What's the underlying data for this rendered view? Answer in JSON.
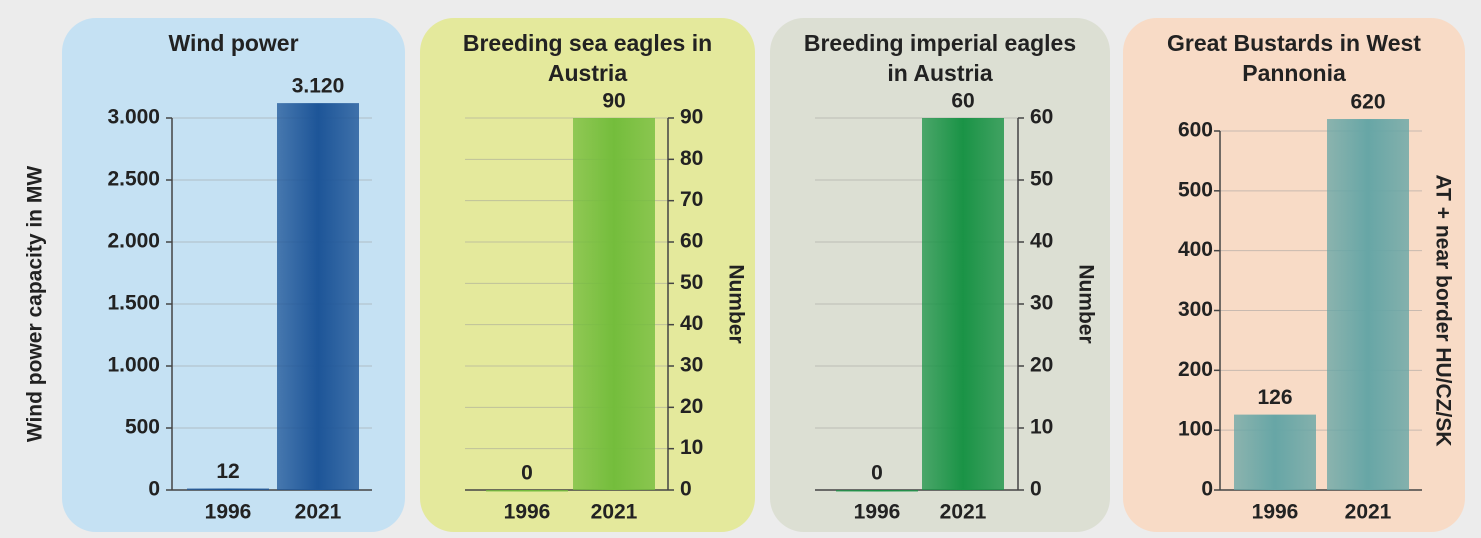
{
  "chart_data": [
    {
      "type": "bar",
      "title": "Wind power",
      "categories": [
        "1996",
        "2021"
      ],
      "values": [
        12,
        3120
      ],
      "value_labels": [
        "12",
        "3.120"
      ],
      "color": "#1d5598",
      "background": "#c5e1f3",
      "ylabel": "Wind power capacity in MW",
      "axis_side": "left",
      "ylim": [
        0,
        3000
      ],
      "yticks": [
        0,
        500,
        {
          "value": 1000,
          "label": "1.000"
        },
        {
          "value": 1500,
          "label": "1.500"
        },
        {
          "value": 2000,
          "label": "2.000"
        },
        {
          "value": 2500,
          "label": "2.500"
        },
        {
          "value": 3000,
          "label": "3.000"
        }
      ],
      "grid": true
    },
    {
      "type": "bar",
      "title": "Breeding sea eagles in Austria",
      "categories": [
        "1996",
        "2021"
      ],
      "values": [
        0,
        90
      ],
      "color": "#74bd3c",
      "background": "#e4e99c",
      "ylabel": "Number",
      "axis_side": "right",
      "ylim": [
        0,
        90
      ],
      "yticks": [
        0,
        10,
        20,
        30,
        40,
        50,
        60,
        70,
        80,
        90
      ],
      "grid": true
    },
    {
      "type": "bar",
      "title": "Breeding imperial eagles in Austria",
      "categories": [
        "1996",
        "2021"
      ],
      "values": [
        0,
        60
      ],
      "color": "#1a9346",
      "background": "#dcdfd3",
      "ylabel": "Number",
      "axis_side": "right",
      "ylim": [
        0,
        60
      ],
      "yticks": [
        0,
        10,
        20,
        30,
        40,
        50,
        60
      ],
      "grid": true
    },
    {
      "type": "bar",
      "title": "Great Bustards in West Pannonia",
      "categories": [
        "1996",
        "2021"
      ],
      "values": [
        126,
        620
      ],
      "color": "#67a6a6",
      "background": "#f8dbc6",
      "ylabel": "AT + near border HU/CZ/SK",
      "axis_side": "left",
      "ylim": [
        0,
        600
      ],
      "yticks": [
        0,
        100,
        200,
        300,
        400,
        500,
        600
      ],
      "grid": true
    }
  ]
}
